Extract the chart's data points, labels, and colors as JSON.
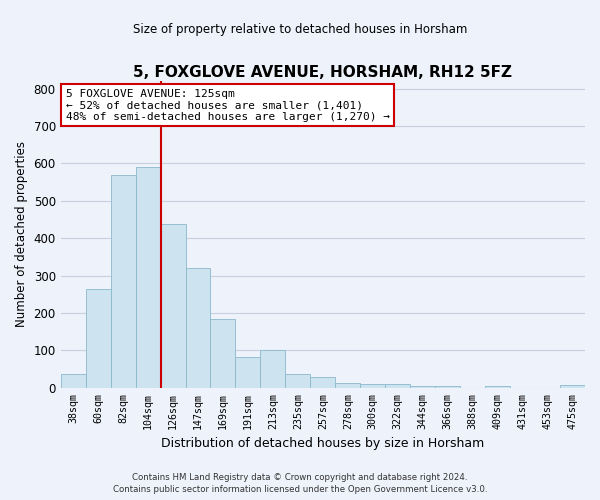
{
  "title": "5, FOXGLOVE AVENUE, HORSHAM, RH12 5FZ",
  "subtitle": "Size of property relative to detached houses in Horsham",
  "xlabel": "Distribution of detached houses by size in Horsham",
  "ylabel": "Number of detached properties",
  "bar_labels": [
    "38sqm",
    "60sqm",
    "82sqm",
    "104sqm",
    "126sqm",
    "147sqm",
    "169sqm",
    "191sqm",
    "213sqm",
    "235sqm",
    "257sqm",
    "278sqm",
    "300sqm",
    "322sqm",
    "344sqm",
    "366sqm",
    "388sqm",
    "409sqm",
    "431sqm",
    "453sqm",
    "475sqm"
  ],
  "bar_values": [
    38,
    263,
    568,
    590,
    438,
    320,
    185,
    82,
    100,
    38,
    30,
    12,
    10,
    10,
    5,
    5,
    0,
    5,
    0,
    0,
    8
  ],
  "bar_color": "#cde4f0",
  "bar_edge_color": "#8ab8cc",
  "vline_index": 4,
  "vline_color": "#cc0000",
  "ylim": [
    0,
    820
  ],
  "yticks": [
    0,
    100,
    200,
    300,
    400,
    500,
    600,
    700,
    800
  ],
  "annotation_text": "5 FOXGLOVE AVENUE: 125sqm\n← 52% of detached houses are smaller (1,401)\n48% of semi-detached houses are larger (1,270) →",
  "annotation_box_color": "#ffffff",
  "annotation_box_edge": "#cc0000",
  "footer_line1": "Contains HM Land Registry data © Crown copyright and database right 2024.",
  "footer_line2": "Contains public sector information licensed under the Open Government Licence v3.0.",
  "background_color": "#eef2fa",
  "plot_background_color": "#eef2fa",
  "grid_color": "#c8d0e0"
}
